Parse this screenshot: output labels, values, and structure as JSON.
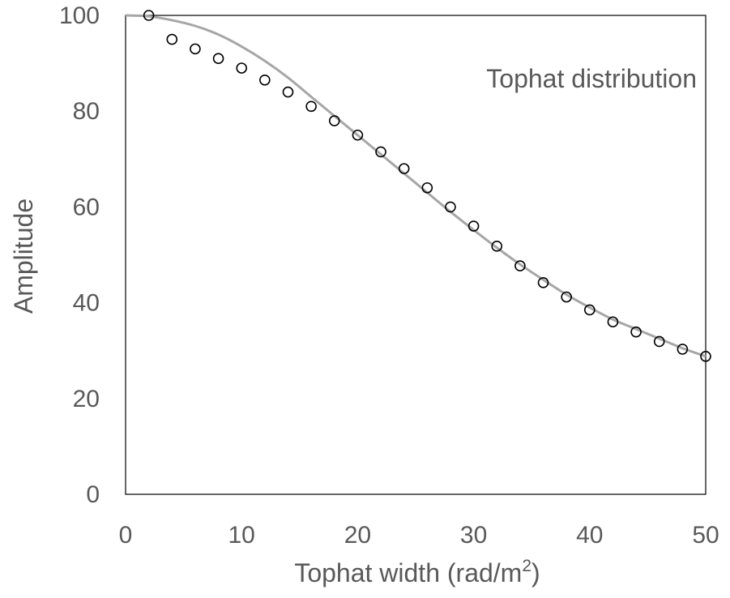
{
  "chart_data": {
    "type": "scatter",
    "title": "",
    "xlabel": "Tophat width (rad/m",
    "xlabel_superscript": "2",
    "xlabel_suffix": ")",
    "ylabel": "Amplitude",
    "xlim": [
      0,
      50
    ],
    "ylim": [
      0,
      100
    ],
    "xticks": [
      "0",
      "10",
      "20",
      "30",
      "40",
      "50"
    ],
    "yticks": [
      "0",
      "20",
      "40",
      "60",
      "80",
      "100"
    ],
    "grid": false,
    "annotation": "Tophat distribution",
    "series": [
      {
        "kind": "markers",
        "marker": "open-circle",
        "color": "#000000",
        "x": [
          2,
          4,
          6,
          8,
          10,
          12,
          14,
          16,
          18,
          20,
          22,
          24,
          26,
          28,
          30,
          32,
          34,
          36,
          38,
          40,
          42,
          44,
          46,
          48,
          50
        ],
        "y": [
          100,
          95,
          93,
          91,
          89,
          86.5,
          84,
          81,
          78,
          75,
          71.5,
          68,
          64,
          60,
          56,
          51.8,
          47.7,
          44.2,
          41.2,
          38.5,
          36,
          33.9,
          31.9,
          30.3,
          28.8
        ]
      },
      {
        "kind": "line",
        "color": "#a6a6a6",
        "x": [
          0,
          2,
          4,
          6,
          8,
          10,
          12,
          14,
          16,
          18,
          20,
          22,
          24,
          26,
          28,
          30,
          32,
          34,
          36,
          38,
          40,
          42,
          44,
          46,
          48,
          50
        ],
        "y": [
          100,
          99.8,
          99,
          97.8,
          96,
          93.5,
          90.5,
          87,
          83,
          79,
          75,
          71,
          67,
          63,
          59,
          55.2,
          51.5,
          48,
          44.8,
          41.7,
          39,
          36.5,
          34.5,
          32.5,
          30.5,
          28.8
        ]
      }
    ]
  }
}
